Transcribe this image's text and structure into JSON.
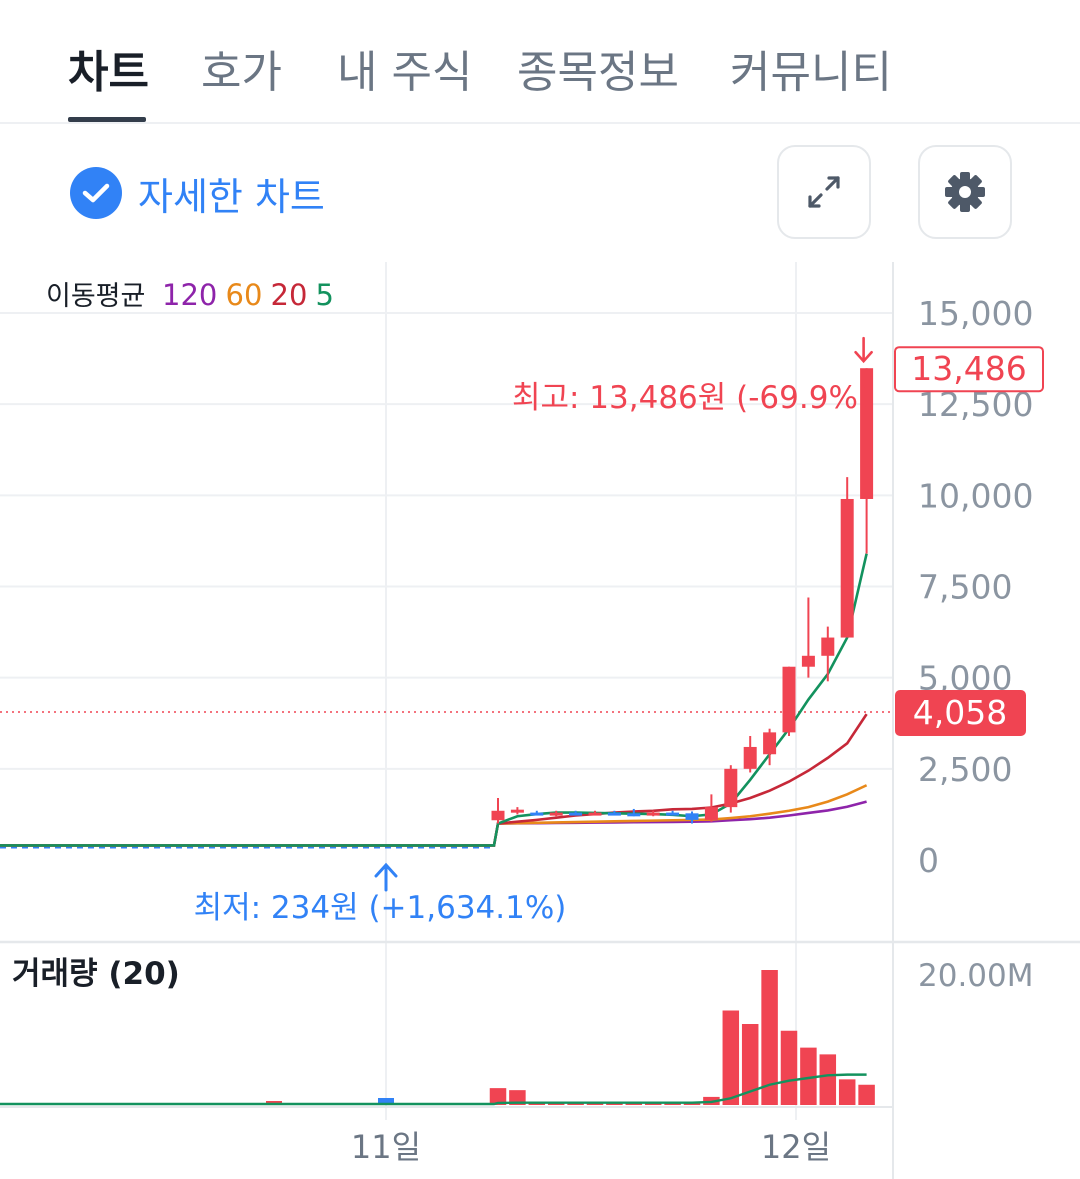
{
  "tabs": [
    {
      "label": "차트",
      "active": true
    },
    {
      "label": "호가",
      "active": false
    },
    {
      "label": "내 주식",
      "active": false
    },
    {
      "label": "종목정보",
      "active": false
    },
    {
      "label": "커뮤니티",
      "active": false
    }
  ],
  "detail_chart": {
    "label": "자세한 차트",
    "checked": true
  },
  "icons": {
    "expand": "expand-arrows-icon",
    "settings": "gear-icon"
  },
  "colors": {
    "up": "#f04452",
    "down": "#3182f6",
    "ma120": "#8e24aa",
    "ma60": "#e8891a",
    "ma20": "#c62838",
    "ma5": "#13925e"
  },
  "chart_data": {
    "type": "candlestick",
    "legend": {
      "label": "이동평균",
      "items": [
        {
          "text": "120",
          "color": "#8e24aa"
        },
        {
          "text": "60",
          "color": "#e8891a"
        },
        {
          "text": "20",
          "color": "#c62838"
        },
        {
          "text": "5",
          "color": "#13925e"
        }
      ]
    },
    "y_ticks": [
      "15,000",
      "12,500",
      "10,000",
      "7,500",
      "5,000",
      "2,500",
      "0"
    ],
    "y_tick_values": [
      15000,
      12500,
      10000,
      7500,
      5000,
      2500,
      0
    ],
    "ylim": [
      0,
      15000
    ],
    "x_labels": [
      "11일",
      "12일"
    ],
    "current_price": {
      "label": "4,058",
      "value": 4058
    },
    "high": {
      "tag": "13,486",
      "value": 13486,
      "label": "최고: 13,486원 (-69.9%)"
    },
    "low": {
      "value": 234,
      "label": "최저: 234원 (+1,634.1%)"
    },
    "candles": [
      {
        "o": 1090,
        "h": 1700,
        "l": 1000,
        "c": 1350
      },
      {
        "o": 1350,
        "h": 1450,
        "l": 1250,
        "c": 1380
      },
      {
        "o": 1300,
        "h": 1350,
        "l": 1250,
        "c": 1250
      },
      {
        "o": 1250,
        "h": 1350,
        "l": 1200,
        "c": 1300
      },
      {
        "o": 1300,
        "h": 1350,
        "l": 1250,
        "c": 1270
      },
      {
        "o": 1270,
        "h": 1350,
        "l": 1220,
        "c": 1300
      },
      {
        "o": 1300,
        "h": 1350,
        "l": 1250,
        "c": 1280
      },
      {
        "o": 1280,
        "h": 1400,
        "l": 1200,
        "c": 1250
      },
      {
        "o": 1250,
        "h": 1350,
        "l": 1200,
        "c": 1300
      },
      {
        "o": 1300,
        "h": 1350,
        "l": 1250,
        "c": 1280
      },
      {
        "o": 1280,
        "h": 1330,
        "l": 1000,
        "c": 1100
      },
      {
        "o": 1100,
        "h": 1800,
        "l": 1050,
        "c": 1450
      },
      {
        "o": 1450,
        "h": 2600,
        "l": 1300,
        "c": 2500
      },
      {
        "o": 2500,
        "h": 3400,
        "l": 2400,
        "c": 3100
      },
      {
        "o": 2900,
        "h": 3600,
        "l": 2600,
        "c": 3500
      },
      {
        "o": 3500,
        "h": 5300,
        "l": 3400,
        "c": 5300
      },
      {
        "o": 5300,
        "h": 7200,
        "l": 5000,
        "c": 5600
      },
      {
        "o": 5600,
        "h": 6400,
        "l": 4900,
        "c": 6100
      },
      {
        "o": 6100,
        "h": 10500,
        "l": 6100,
        "c": 9900
      },
      {
        "o": 9900,
        "h": 13486,
        "l": 8400,
        "c": 13486
      }
    ],
    "ma5": [
      1000,
      1200,
      1260,
      1300,
      1300,
      1290,
      1280,
      1270,
      1260,
      1240,
      1200,
      1250,
      1550,
      2200,
      2900,
      3600,
      4400,
      5100,
      6100,
      8400
    ],
    "ma20": [
      1000,
      1050,
      1100,
      1160,
      1220,
      1260,
      1300,
      1330,
      1350,
      1390,
      1400,
      1440,
      1550,
      1700,
      1900,
      2150,
      2450,
      2800,
      3200,
      4000
    ],
    "ma60": [
      1000,
      1010,
      1020,
      1030,
      1040,
      1050,
      1060,
      1070,
      1080,
      1090,
      1100,
      1110,
      1150,
      1200,
      1270,
      1350,
      1450,
      1600,
      1800,
      2050
    ],
    "ma120": [
      1000,
      1005,
      1010,
      1015,
      1020,
      1025,
      1030,
      1035,
      1040,
      1045,
      1050,
      1060,
      1090,
      1120,
      1160,
      1220,
      1290,
      1360,
      1460,
      1600
    ],
    "volume": {
      "title": "거래량 (20)",
      "y_tick": "20.00M",
      "ymax_millions": 20,
      "bars": [
        2.5,
        2.2,
        0.4,
        0.4,
        0.4,
        0.4,
        0.4,
        0.4,
        0.4,
        0.4,
        0.4,
        1.2,
        14,
        12,
        20,
        11,
        8.5,
        7.5,
        3.8,
        3.0
      ],
      "ma20": [
        0.3,
        0.35,
        0.35,
        0.35,
        0.35,
        0.35,
        0.35,
        0.35,
        0.35,
        0.35,
        0.35,
        0.45,
        1.0,
        2.0,
        3.0,
        3.6,
        4.0,
        4.4,
        4.5,
        4.5
      ]
    }
  }
}
